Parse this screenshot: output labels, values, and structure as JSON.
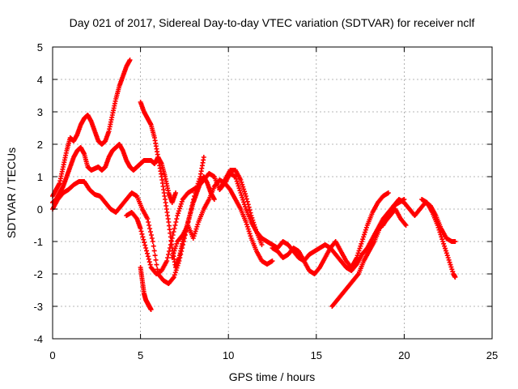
{
  "chart_data": {
    "type": "scatter",
    "title": "Day 021 of 2017, Sidereal Day-to-day VTEC variation (SDTVAR) for receiver nclf",
    "xlabel": "GPS time / hours",
    "ylabel": "SDTVAR / TECUs",
    "xlim": [
      0,
      25
    ],
    "ylim": [
      -4,
      5
    ],
    "xticks": [
      "0",
      "5",
      "10",
      "15",
      "20",
      "25"
    ],
    "yticks": [
      "-4",
      "-3",
      "-2",
      "-1",
      "0",
      "1",
      "2",
      "3",
      "4",
      "5"
    ],
    "grid": true,
    "marker": "plus",
    "color": "#ff0000",
    "series": [
      {
        "x": [
          0.0,
          0.2,
          0.4,
          0.6,
          0.8,
          1.0,
          1.2,
          1.4,
          1.6,
          1.8,
          2.0,
          2.2,
          2.4,
          2.6,
          2.8,
          3.0,
          3.2,
          3.4,
          3.6,
          3.8,
          4.0,
          4.2,
          4.4
        ],
        "y": [
          0.4,
          0.6,
          0.8,
          1.3,
          1.8,
          2.2,
          2.1,
          2.3,
          2.6,
          2.8,
          2.9,
          2.7,
          2.4,
          2.1,
          2.0,
          2.1,
          2.4,
          2.9,
          3.4,
          3.8,
          4.1,
          4.4,
          4.6
        ]
      },
      {
        "x": [
          0.0,
          0.2,
          0.4,
          0.6,
          0.8,
          1.0,
          1.2,
          1.4,
          1.6,
          1.8,
          2.0,
          2.2,
          2.4,
          2.6,
          2.8,
          3.0,
          3.2,
          3.4,
          3.6,
          3.8,
          4.0,
          4.2,
          4.4,
          4.6,
          4.8,
          5.0,
          5.2,
          5.4,
          5.6,
          5.8,
          6.0,
          6.2,
          6.4,
          6.6,
          6.8,
          7.0
        ],
        "y": [
          0.2,
          0.3,
          0.5,
          0.7,
          1.0,
          1.3,
          1.6,
          1.8,
          1.9,
          1.7,
          1.3,
          1.2,
          1.25,
          1.3,
          1.2,
          1.3,
          1.6,
          1.8,
          1.9,
          2.0,
          1.8,
          1.5,
          1.3,
          1.2,
          1.3,
          1.4,
          1.5,
          1.5,
          1.5,
          1.4,
          1.6,
          1.4,
          1.0,
          0.5,
          0.2,
          0.5
        ]
      },
      {
        "x": [
          0.0,
          0.3,
          0.6,
          0.9,
          1.2,
          1.5,
          1.8,
          2.1,
          2.4,
          2.7,
          3.0,
          3.3,
          3.6,
          3.9,
          4.2,
          4.5,
          4.8,
          5.1,
          5.4,
          5.7,
          6.0,
          6.3,
          6.6,
          6.9,
          7.2,
          7.5,
          7.8,
          8.1,
          8.4,
          8.6
        ],
        "y": [
          0.0,
          0.3,
          0.5,
          0.6,
          0.75,
          0.85,
          0.85,
          0.6,
          0.45,
          0.4,
          0.2,
          0.0,
          -0.1,
          0.1,
          0.3,
          0.5,
          0.4,
          0.0,
          -0.3,
          -1.0,
          -2.0,
          -2.2,
          -2.3,
          -2.1,
          -1.6,
          -0.9,
          -0.2,
          0.5,
          1.0,
          1.6
        ]
      },
      {
        "x": [
          4.2,
          4.5,
          4.8,
          5.0,
          5.3,
          5.6,
          5.9,
          6.2,
          6.5,
          6.8,
          7.1,
          7.4,
          7.7,
          8.0,
          8.3,
          8.6,
          8.9,
          9.2,
          9.5,
          9.8,
          10.1,
          10.4,
          10.7,
          11.0,
          11.3,
          11.6,
          11.9
        ],
        "y": [
          -0.2,
          -0.1,
          -0.3,
          -0.6,
          -1.2,
          -1.8,
          -2.0,
          -1.9,
          -1.6,
          -0.9,
          -0.2,
          0.3,
          0.5,
          0.6,
          0.7,
          0.9,
          1.1,
          1.0,
          0.6,
          0.9,
          1.2,
          1.2,
          0.9,
          0.4,
          -0.2,
          -0.7,
          -1.1
        ]
      },
      {
        "x": [
          5.0,
          5.2,
          5.4,
          5.6,
          5.8,
          6.0,
          6.2,
          6.4,
          6.6,
          6.8,
          7.0,
          7.2,
          7.4,
          7.6,
          7.8,
          8.0,
          8.2,
          8.4,
          8.6,
          8.8,
          9.0,
          9.2
        ],
        "y": [
          3.3,
          3.0,
          2.8,
          2.6,
          2.2,
          1.6,
          1.0,
          0.3,
          -0.4,
          -1.2,
          -1.8,
          -1.5,
          -1.0,
          -0.6,
          -0.2,
          0.2,
          0.5,
          0.8,
          1.0,
          0.8,
          0.5,
          0.3
        ]
      },
      {
        "x": [
          5.0,
          5.1,
          5.2,
          5.3,
          5.4,
          5.5,
          5.6
        ],
        "y": [
          -1.8,
          -2.2,
          -2.6,
          -2.8,
          -2.9,
          -3.0,
          -3.1
        ]
      },
      {
        "x": [
          6.8,
          7.1,
          7.4,
          7.7,
          8.0,
          8.3,
          8.6,
          8.9,
          9.2,
          9.5,
          9.8,
          10.1,
          10.4,
          10.7,
          11.0,
          11.3,
          11.6,
          11.9,
          12.2,
          12.5
        ],
        "y": [
          -1.5,
          -1.0,
          -0.8,
          -0.5,
          -0.9,
          -0.4,
          0.0,
          0.3,
          0.7,
          0.9,
          0.8,
          0.6,
          0.3,
          0.0,
          -0.4,
          -0.9,
          -1.3,
          -1.6,
          -1.7,
          -1.6
        ]
      },
      {
        "x": [
          9.5,
          9.8,
          10.1,
          10.4,
          10.7,
          11.0,
          11.3,
          11.6,
          11.9,
          12.2,
          12.5,
          12.8,
          13.1,
          13.4,
          13.7,
          14.0,
          14.3,
          14.6,
          14.9,
          15.2,
          15.5,
          15.8,
          16.1,
          16.4,
          16.7,
          17.0,
          17.3,
          17.6,
          17.9,
          18.2,
          18.5,
          18.8,
          19.1,
          19.4,
          19.7,
          20.0
        ],
        "y": [
          0.6,
          0.8,
          1.1,
          1.0,
          0.5,
          0.0,
          -0.4,
          -0.7,
          -0.9,
          -1.0,
          -1.1,
          -1.2,
          -1.0,
          -1.1,
          -1.3,
          -1.5,
          -1.6,
          -1.4,
          -1.3,
          -1.2,
          -1.1,
          -1.2,
          -1.4,
          -1.6,
          -1.8,
          -1.9,
          -1.7,
          -1.4,
          -1.2,
          -0.9,
          -0.6,
          -0.3,
          -0.1,
          0.1,
          0.2,
          0.3
        ]
      },
      {
        "x": [
          12.5,
          12.8,
          13.1,
          13.4,
          13.7,
          14.0,
          14.3,
          14.6,
          14.9,
          15.2,
          15.5,
          15.8,
          16.1,
          16.4,
          16.7,
          17.0,
          17.3,
          17.6,
          17.9,
          18.2,
          18.5,
          18.8,
          19.1
        ],
        "y": [
          -1.2,
          -1.3,
          -1.5,
          -1.4,
          -1.2,
          -1.3,
          -1.6,
          -1.9,
          -2.0,
          -1.8,
          -1.5,
          -1.2,
          -1.0,
          -1.3,
          -1.6,
          -1.8,
          -1.5,
          -1.0,
          -0.5,
          -0.1,
          0.2,
          0.4,
          0.5
        ]
      },
      {
        "x": [
          15.9,
          16.2,
          16.5,
          16.8,
          17.1,
          17.4,
          17.7,
          18.0,
          18.3,
          18.6,
          18.9,
          19.2,
          19.5,
          19.8,
          20.1
        ],
        "y": [
          -3.0,
          -2.8,
          -2.6,
          -2.4,
          -2.2,
          -2.0,
          -1.6,
          -1.3,
          -1.0,
          -0.6,
          -0.4,
          -0.2,
          0.0,
          -0.3,
          -0.5
        ]
      },
      {
        "x": [
          18.8,
          19.1,
          19.4,
          19.7,
          20.0,
          20.3,
          20.6,
          20.9,
          21.2,
          21.5,
          21.8,
          22.1,
          22.4,
          22.7,
          22.9
        ],
        "y": [
          -0.5,
          -0.2,
          0.1,
          0.3,
          0.2,
          0.0,
          -0.2,
          0.0,
          0.2,
          0.1,
          -0.2,
          -0.6,
          -0.9,
          -1.0,
          -1.0
        ]
      },
      {
        "x": [
          21.0,
          21.3,
          21.6,
          21.9,
          22.2,
          22.5,
          22.8,
          22.9
        ],
        "y": [
          0.3,
          0.2,
          -0.1,
          -0.5,
          -1.0,
          -1.5,
          -2.0,
          -2.1
        ]
      }
    ]
  }
}
